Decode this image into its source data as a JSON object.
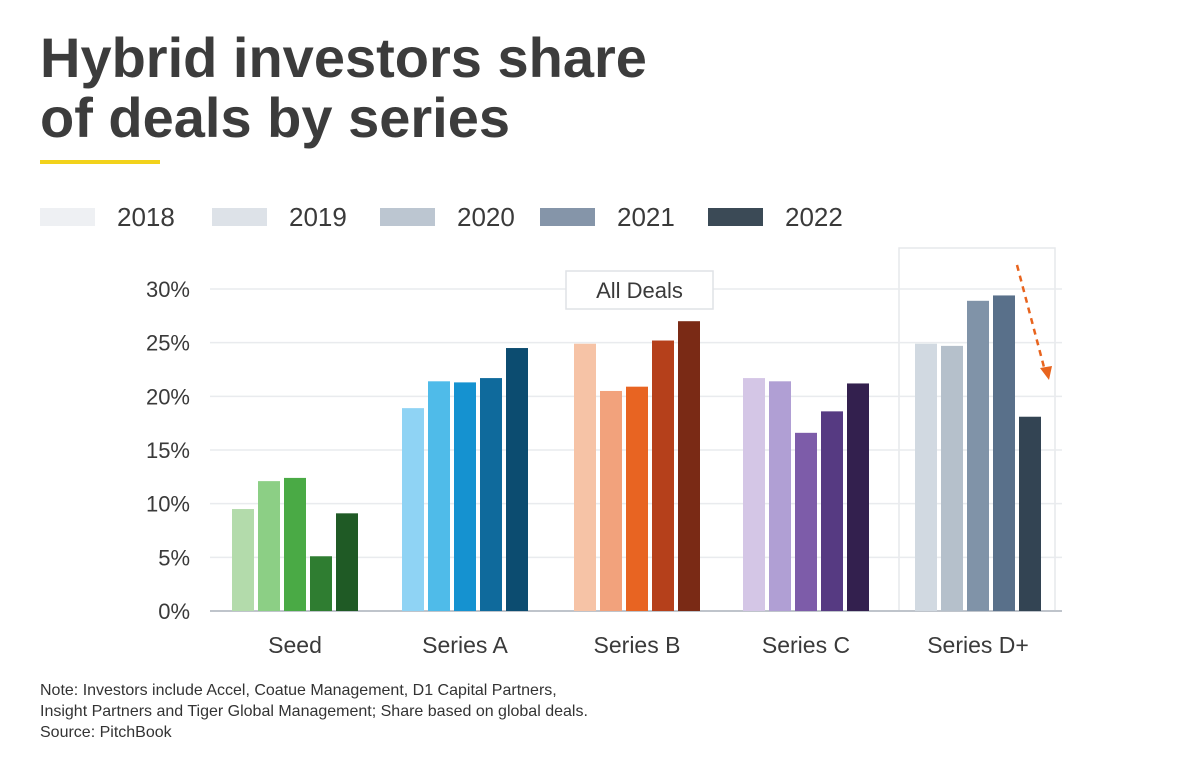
{
  "title_line1": "Hybrid investors share",
  "title_line2": "of deals by series",
  "accent_color": "#f2d21b",
  "legend": [
    {
      "label": "2018",
      "color": "#eef0f3"
    },
    {
      "label": "2019",
      "color": "#dde2e8"
    },
    {
      "label": "2020",
      "color": "#bcc6d1"
    },
    {
      "label": "2021",
      "color": "#8595a9"
    },
    {
      "label": "2022",
      "color": "#3b4a56"
    }
  ],
  "annotation_label": "All Deals",
  "note": {
    "line1": "Note: Investors include Accel, Coatue Management, D1 Capital Partners,",
    "line2": "Insight Partners and Tiger Global Management; Share based on global deals.",
    "source": "Source: PitchBook"
  },
  "chart_data": {
    "type": "bar",
    "categories": [
      "Seed",
      "Series A",
      "Series B",
      "Series C",
      "Series D+"
    ],
    "series_names": [
      "2018",
      "2019",
      "2020",
      "2021",
      "2022"
    ],
    "values": [
      [
        9.5,
        12.1,
        12.4,
        5.1,
        9.1
      ],
      [
        18.9,
        21.4,
        21.3,
        21.7,
        24.5
      ],
      [
        24.9,
        20.5,
        20.9,
        25.2,
        27.0
      ],
      [
        21.7,
        21.4,
        16.6,
        18.6,
        21.2
      ],
      [
        24.9,
        24.7,
        28.9,
        29.4,
        18.1
      ]
    ],
    "category_colors": [
      [
        "#b3dbab",
        "#8ccf85",
        "#4aaa45",
        "#2f7d31",
        "#1f5a25"
      ],
      [
        "#8fd3f4",
        "#4fbbe9",
        "#1592d0",
        "#0f6a9c",
        "#0c4c70"
      ],
      [
        "#f6c3a6",
        "#f2a27c",
        "#e86422",
        "#b5401b",
        "#7a2a15"
      ],
      [
        "#d4c6e6",
        "#b09fd4",
        "#7d5ca9",
        "#563a82",
        "#33204e"
      ],
      [
        "#d1d9e1",
        "#b5c0cb",
        "#8093a8",
        "#59708a",
        "#334453"
      ]
    ],
    "y_ticks": [
      "0%",
      "5%",
      "10%",
      "15%",
      "20%",
      "25%",
      "30%"
    ],
    "ylim": [
      0,
      30
    ],
    "grid": true,
    "legend_position": "top",
    "highlighted_category": "Series D+",
    "trend_arrow": {
      "color": "#e8641e"
    }
  }
}
